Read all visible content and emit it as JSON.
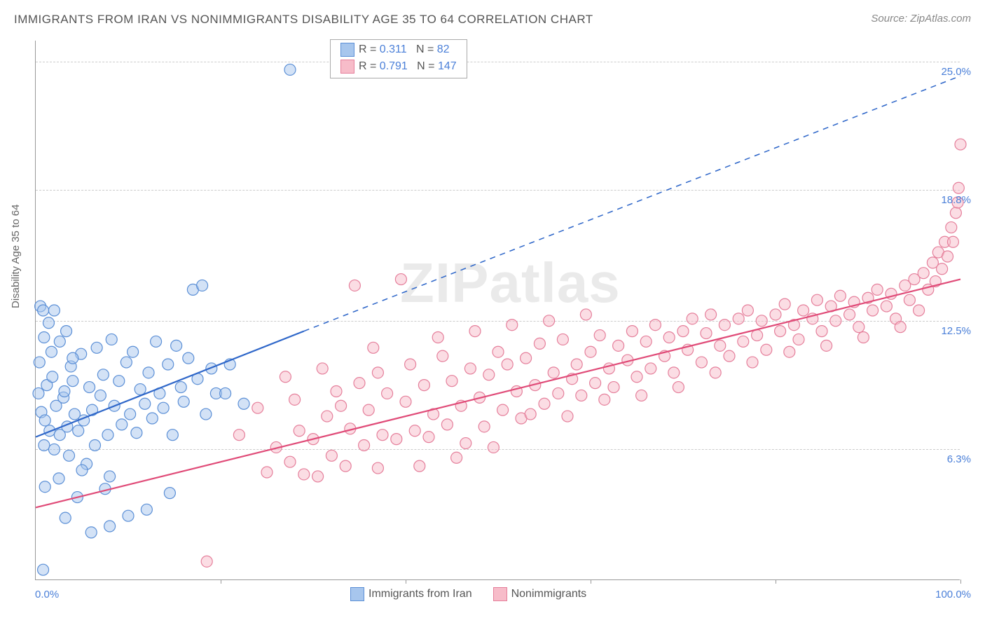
{
  "title": "IMMIGRANTS FROM IRAN VS NONIMMIGRANTS DISABILITY AGE 35 TO 64 CORRELATION CHART",
  "source_prefix": "Source: ",
  "source_name": "ZipAtlas.com",
  "y_axis_label": "Disability Age 35 to 64",
  "watermark": "ZIPatlas",
  "chart": {
    "type": "scatter",
    "xlim": [
      0,
      100
    ],
    "ylim": [
      0,
      26
    ],
    "x_ticks": [
      0,
      20,
      40,
      60,
      80,
      100
    ],
    "y_grid": [
      6.3,
      12.5,
      18.8,
      25.0
    ],
    "y_tick_labels": [
      "6.3%",
      "12.5%",
      "18.8%",
      "25.0%"
    ],
    "x_tick_labels": {
      "left": "0.0%",
      "right": "100.0%"
    },
    "background_color": "#ffffff",
    "grid_color": "#cccccc",
    "axis_color": "#999999",
    "marker_radius": 8,
    "marker_opacity": 0.5,
    "series": [
      {
        "name": "Immigrants from Iran",
        "color_fill": "#a7c6ed",
        "color_stroke": "#5b8fd6",
        "R": 0.311,
        "N": 82,
        "regression": {
          "x1": 0,
          "y1": 6.9,
          "x2": 29,
          "y2": 12.0,
          "dash_x2": 100,
          "dash_y2": 24.3,
          "stroke": "#2f67c9",
          "width": 2.2
        },
        "points": [
          [
            0.5,
            13.2
          ],
          [
            0.8,
            13.0
          ],
          [
            0.3,
            9.0
          ],
          [
            1.2,
            9.4
          ],
          [
            0.6,
            8.1
          ],
          [
            1.8,
            9.8
          ],
          [
            1.0,
            7.7
          ],
          [
            0.9,
            6.5
          ],
          [
            1.5,
            7.2
          ],
          [
            2.2,
            8.4
          ],
          [
            2.0,
            6.3
          ],
          [
            2.6,
            7.0
          ],
          [
            3.0,
            8.8
          ],
          [
            3.4,
            7.4
          ],
          [
            3.8,
            10.3
          ],
          [
            3.1,
            9.1
          ],
          [
            3.6,
            6.0
          ],
          [
            4.2,
            8.0
          ],
          [
            4.0,
            9.6
          ],
          [
            4.6,
            7.2
          ],
          [
            4.9,
            10.9
          ],
          [
            5.2,
            7.7
          ],
          [
            5.5,
            5.6
          ],
          [
            5.8,
            9.3
          ],
          [
            6.1,
            8.2
          ],
          [
            6.6,
            11.2
          ],
          [
            6.4,
            6.5
          ],
          [
            7.0,
            8.9
          ],
          [
            7.3,
            9.9
          ],
          [
            7.8,
            7.0
          ],
          [
            8.2,
            11.6
          ],
          [
            8.5,
            8.4
          ],
          [
            8.0,
            5.0
          ],
          [
            9.0,
            9.6
          ],
          [
            9.3,
            7.5
          ],
          [
            9.8,
            10.5
          ],
          [
            10.2,
            8.0
          ],
          [
            10.5,
            11.0
          ],
          [
            10.9,
            7.1
          ],
          [
            11.3,
            9.2
          ],
          [
            11.8,
            8.5
          ],
          [
            12.2,
            10.0
          ],
          [
            12.6,
            7.8
          ],
          [
            13.0,
            11.5
          ],
          [
            13.4,
            9.0
          ],
          [
            13.8,
            8.3
          ],
          [
            14.3,
            10.4
          ],
          [
            14.8,
            7.0
          ],
          [
            15.2,
            11.3
          ],
          [
            15.7,
            9.3
          ],
          [
            16.0,
            8.6
          ],
          [
            16.5,
            10.7
          ],
          [
            17.0,
            14.0
          ],
          [
            17.5,
            9.7
          ],
          [
            18.0,
            14.2
          ],
          [
            18.4,
            8.0
          ],
          [
            19.0,
            10.2
          ],
          [
            19.5,
            9.0
          ],
          [
            6.0,
            2.3
          ],
          [
            8.0,
            2.6
          ],
          [
            10.0,
            3.1
          ],
          [
            3.2,
            3.0
          ],
          [
            4.5,
            4.0
          ],
          [
            12.0,
            3.4
          ],
          [
            0.8,
            0.5
          ],
          [
            2.5,
            4.9
          ],
          [
            5.0,
            5.3
          ],
          [
            7.5,
            4.4
          ],
          [
            1.7,
            11.0
          ],
          [
            2.6,
            11.5
          ],
          [
            3.3,
            12.0
          ],
          [
            4.0,
            10.7
          ],
          [
            0.4,
            10.5
          ],
          [
            0.9,
            11.7
          ],
          [
            1.4,
            12.4
          ],
          [
            2.0,
            13.0
          ],
          [
            27.5,
            24.6
          ],
          [
            20.5,
            9.0
          ],
          [
            21.0,
            10.4
          ],
          [
            22.5,
            8.5
          ],
          [
            14.5,
            4.2
          ],
          [
            1.0,
            4.5
          ]
        ]
      },
      {
        "name": "Nonimmigrants",
        "color_fill": "#f7bcc9",
        "color_stroke": "#e57f9b",
        "R": 0.791,
        "N": 147,
        "regression": {
          "x1": 0,
          "y1": 3.5,
          "x2": 100,
          "y2": 14.5,
          "stroke": "#e04b78",
          "width": 2.2
        },
        "points": [
          [
            18.5,
            0.9
          ],
          [
            25.0,
            5.2
          ],
          [
            26.0,
            6.4
          ],
          [
            27.5,
            5.7
          ],
          [
            28.5,
            7.2
          ],
          [
            29.0,
            5.1
          ],
          [
            30.0,
            6.8
          ],
          [
            30.5,
            5.0
          ],
          [
            31.5,
            7.9
          ],
          [
            32.0,
            6.0
          ],
          [
            33.0,
            8.4
          ],
          [
            33.5,
            5.5
          ],
          [
            34.0,
            7.3
          ],
          [
            35.0,
            9.5
          ],
          [
            35.5,
            6.5
          ],
          [
            36.0,
            8.2
          ],
          [
            37.0,
            10.0
          ],
          [
            37.5,
            7.0
          ],
          [
            38.0,
            9.0
          ],
          [
            39.0,
            6.8
          ],
          [
            39.5,
            14.5
          ],
          [
            40.0,
            8.6
          ],
          [
            40.5,
            10.4
          ],
          [
            41.0,
            7.2
          ],
          [
            42.0,
            9.4
          ],
          [
            42.5,
            6.9
          ],
          [
            43.0,
            8.0
          ],
          [
            44.0,
            10.8
          ],
          [
            44.5,
            7.5
          ],
          [
            45.0,
            9.6
          ],
          [
            46.0,
            8.4
          ],
          [
            46.5,
            6.6
          ],
          [
            47.0,
            10.2
          ],
          [
            48.0,
            8.8
          ],
          [
            48.5,
            7.4
          ],
          [
            49.0,
            9.9
          ],
          [
            50.0,
            11.0
          ],
          [
            50.5,
            8.2
          ],
          [
            51.0,
            10.4
          ],
          [
            52.0,
            9.1
          ],
          [
            52.5,
            7.8
          ],
          [
            53.0,
            10.7
          ],
          [
            54.0,
            9.4
          ],
          [
            54.5,
            11.4
          ],
          [
            55.0,
            8.5
          ],
          [
            56.0,
            10.0
          ],
          [
            56.5,
            9.0
          ],
          [
            57.0,
            11.6
          ],
          [
            58.0,
            9.7
          ],
          [
            58.5,
            10.4
          ],
          [
            59.0,
            8.9
          ],
          [
            60.0,
            11.0
          ],
          [
            60.5,
            9.5
          ],
          [
            61.0,
            11.8
          ],
          [
            62.0,
            10.2
          ],
          [
            62.5,
            9.3
          ],
          [
            63.0,
            11.3
          ],
          [
            64.0,
            10.6
          ],
          [
            64.5,
            12.0
          ],
          [
            65.0,
            9.8
          ],
          [
            66.0,
            11.5
          ],
          [
            66.5,
            10.2
          ],
          [
            67.0,
            12.3
          ],
          [
            68.0,
            10.8
          ],
          [
            68.5,
            11.7
          ],
          [
            69.0,
            10.0
          ],
          [
            70.0,
            12.0
          ],
          [
            70.5,
            11.1
          ],
          [
            71.0,
            12.6
          ],
          [
            72.0,
            10.5
          ],
          [
            72.5,
            11.9
          ],
          [
            73.0,
            12.8
          ],
          [
            74.0,
            11.3
          ],
          [
            74.5,
            12.3
          ],
          [
            75.0,
            10.8
          ],
          [
            76.0,
            12.6
          ],
          [
            76.5,
            11.5
          ],
          [
            77.0,
            13.0
          ],
          [
            78.0,
            11.8
          ],
          [
            78.5,
            12.5
          ],
          [
            79.0,
            11.1
          ],
          [
            80.0,
            12.8
          ],
          [
            80.5,
            12.0
          ],
          [
            81.0,
            13.3
          ],
          [
            82.0,
            12.3
          ],
          [
            82.5,
            11.6
          ],
          [
            83.0,
            13.0
          ],
          [
            84.0,
            12.6
          ],
          [
            84.5,
            13.5
          ],
          [
            85.0,
            12.0
          ],
          [
            86.0,
            13.2
          ],
          [
            86.5,
            12.5
          ],
          [
            87.0,
            13.7
          ],
          [
            88.0,
            12.8
          ],
          [
            88.5,
            13.4
          ],
          [
            89.0,
            12.2
          ],
          [
            90.0,
            13.6
          ],
          [
            90.5,
            13.0
          ],
          [
            91.0,
            14.0
          ],
          [
            92.0,
            13.2
          ],
          [
            92.5,
            13.8
          ],
          [
            93.0,
            12.6
          ],
          [
            94.0,
            14.2
          ],
          [
            94.5,
            13.5
          ],
          [
            95.0,
            14.5
          ],
          [
            95.5,
            13.0
          ],
          [
            96.0,
            14.8
          ],
          [
            96.5,
            14.0
          ],
          [
            97.0,
            15.3
          ],
          [
            97.3,
            14.4
          ],
          [
            97.6,
            15.8
          ],
          [
            98.0,
            15.0
          ],
          [
            98.3,
            16.3
          ],
          [
            98.6,
            15.6
          ],
          [
            99.0,
            17.0
          ],
          [
            99.2,
            16.3
          ],
          [
            99.5,
            17.7
          ],
          [
            99.7,
            18.2
          ],
          [
            99.8,
            18.9
          ],
          [
            100.0,
            21.0
          ],
          [
            27.0,
            9.8
          ],
          [
            31.0,
            10.2
          ],
          [
            34.5,
            14.2
          ],
          [
            37.0,
            5.4
          ],
          [
            41.5,
            5.5
          ],
          [
            45.5,
            5.9
          ],
          [
            49.5,
            6.4
          ],
          [
            53.5,
            8.0
          ],
          [
            57.5,
            7.9
          ],
          [
            61.5,
            8.7
          ],
          [
            65.5,
            8.9
          ],
          [
            69.5,
            9.3
          ],
          [
            73.5,
            10.0
          ],
          [
            77.5,
            10.5
          ],
          [
            81.5,
            11.0
          ],
          [
            85.5,
            11.3
          ],
          [
            89.5,
            11.7
          ],
          [
            93.5,
            12.2
          ],
          [
            22.0,
            7.0
          ],
          [
            24.0,
            8.3
          ],
          [
            28.0,
            8.7
          ],
          [
            32.5,
            9.1
          ],
          [
            36.5,
            11.2
          ],
          [
            43.5,
            11.7
          ],
          [
            47.5,
            12.0
          ],
          [
            51.5,
            12.3
          ],
          [
            55.5,
            12.5
          ],
          [
            59.5,
            12.8
          ]
        ]
      }
    ]
  },
  "stats_box": {
    "rows": [
      {
        "swatch_fill": "#a7c6ed",
        "swatch_stroke": "#5b8fd6",
        "r_label": "R =",
        "r_val": "  0.311",
        "n_label": "N =",
        "n_val": "  82"
      },
      {
        "swatch_fill": "#f7bcc9",
        "swatch_stroke": "#e57f9b",
        "r_label": "R =",
        "r_val": "  0.791",
        "n_label": "N =",
        "n_val": " 147"
      }
    ]
  },
  "bottom_legend": [
    {
      "swatch_fill": "#a7c6ed",
      "swatch_stroke": "#5b8fd6",
      "label": "Immigrants from Iran"
    },
    {
      "swatch_fill": "#f7bcc9",
      "swatch_stroke": "#e57f9b",
      "label": "Nonimmigrants"
    }
  ]
}
